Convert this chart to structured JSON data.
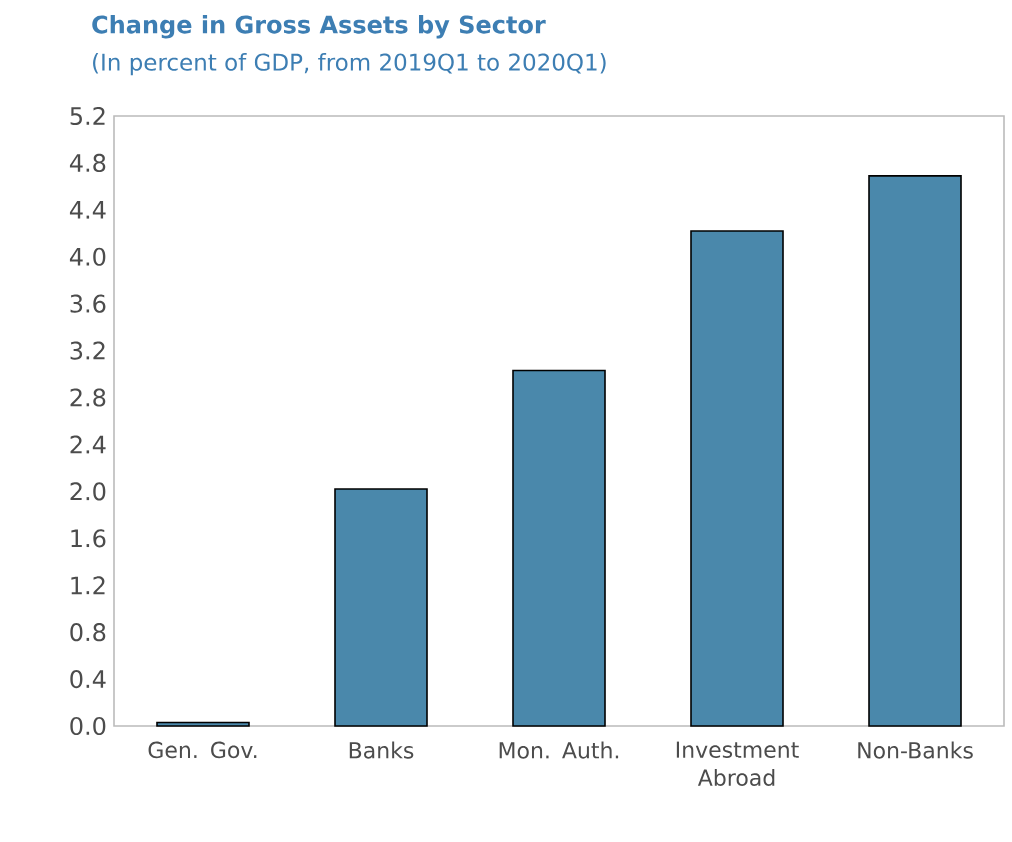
{
  "chart_data": {
    "type": "bar",
    "title": "Change in Gross Assets by Sector",
    "subtitle": "(In percent of GDP, from 2019Q1 to 2020Q1)",
    "categories": [
      "Gen. Gov.",
      "Banks",
      "Mon. Auth.",
      "Investment Abroad",
      "Non-Banks"
    ],
    "values": [
      0.03,
      2.02,
      3.03,
      4.22,
      4.69
    ],
    "color": "#4a88ab",
    "ylim": [
      0,
      5.2
    ],
    "yticks": [
      {
        "value": 0,
        "label": "0.0"
      },
      0.4,
      0.8,
      1.2,
      1.6,
      {
        "value": 2,
        "label": "2.0"
      },
      2.4,
      2.8,
      3.2,
      3.6,
      {
        "value": 4,
        "label": "4.0"
      },
      4.4,
      4.8,
      5.2
    ],
    "grid": false
  }
}
